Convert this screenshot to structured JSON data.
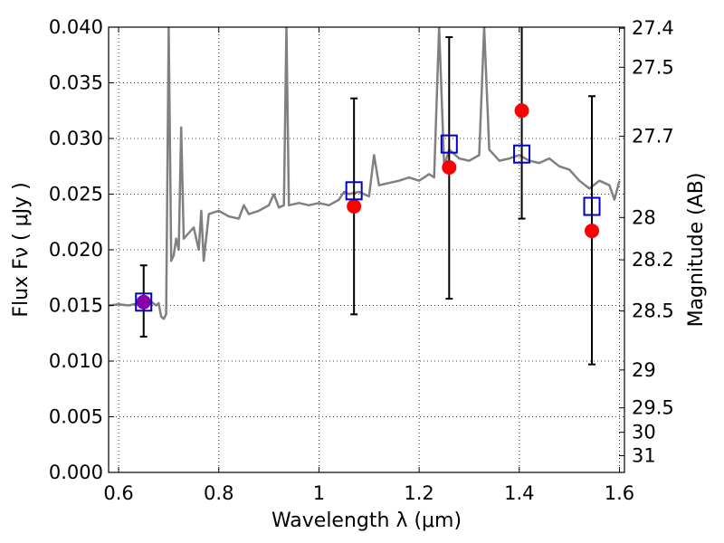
{
  "chart_data": {
    "type": "scatter",
    "xlabel": "Wavelength  λ (μm)",
    "ylabel": "Flux  Fν  ( μJy )",
    "y2label": "Magnitude (AB)",
    "xlim": [
      0.58,
      1.61
    ],
    "ylim": [
      0.0,
      0.04
    ],
    "xticks": [
      0.6,
      0.8,
      1.0,
      1.2,
      1.4,
      1.6
    ],
    "xtick_labels": [
      "0.6",
      "0.8",
      "1",
      "1.2",
      "1.4",
      "1.6"
    ],
    "yticks": [
      0.0,
      0.005,
      0.01,
      0.015,
      0.02,
      0.025,
      0.03,
      0.035,
      0.04
    ],
    "ytick_labels": [
      "0.000",
      "0.005",
      "0.010",
      "0.015",
      "0.020",
      "0.025",
      "0.030",
      "0.035",
      "0.040"
    ],
    "y2ticks": [
      {
        "label": "27.4",
        "flux": 0.0399
      },
      {
        "label": "27.5",
        "flux": 0.0364
      },
      {
        "label": "27.7",
        "flux": 0.0302
      },
      {
        "label": "28",
        "flux": 0.0229
      },
      {
        "label": "28.2",
        "flux": 0.0191
      },
      {
        "label": "28.5",
        "flux": 0.0145
      },
      {
        "label": "29",
        "flux": 0.0092
      },
      {
        "label": "29.5",
        "flux": 0.0058
      },
      {
        "label": "30",
        "flux": 0.0036
      },
      {
        "label": "31",
        "flux": 0.0015
      }
    ],
    "grid": true,
    "colors": {
      "model": "#808080",
      "observed": "#ff0000",
      "model_phot": "#0000cc",
      "errorbar": "#000000",
      "overlap": "#8800aa"
    },
    "series": [
      {
        "kind": "line",
        "points": [
          [
            0.58,
            0.015
          ],
          [
            0.6,
            0.0151
          ],
          [
            0.62,
            0.015
          ],
          [
            0.64,
            0.0152
          ],
          [
            0.66,
            0.0155
          ],
          [
            0.675,
            0.015
          ],
          [
            0.68,
            0.0152
          ],
          [
            0.685,
            0.014
          ],
          [
            0.69,
            0.0138
          ],
          [
            0.695,
            0.0142
          ],
          [
            0.7,
            0.04
          ],
          [
            0.705,
            0.019
          ],
          [
            0.71,
            0.0195
          ],
          [
            0.715,
            0.021
          ],
          [
            0.72,
            0.02
          ],
          [
            0.725,
            0.031
          ],
          [
            0.73,
            0.021
          ],
          [
            0.74,
            0.0215
          ],
          [
            0.75,
            0.022
          ],
          [
            0.76,
            0.02
          ],
          [
            0.765,
            0.0235
          ],
          [
            0.77,
            0.019
          ],
          [
            0.78,
            0.0232
          ],
          [
            0.8,
            0.0235
          ],
          [
            0.82,
            0.023
          ],
          [
            0.84,
            0.0228
          ],
          [
            0.85,
            0.024
          ],
          [
            0.86,
            0.0232
          ],
          [
            0.88,
            0.0235
          ],
          [
            0.9,
            0.024
          ],
          [
            0.91,
            0.025
          ],
          [
            0.92,
            0.0238
          ],
          [
            0.93,
            0.024
          ],
          [
            0.935,
            0.04
          ],
          [
            0.94,
            0.024
          ],
          [
            0.96,
            0.0242
          ],
          [
            0.98,
            0.024
          ],
          [
            1.0,
            0.0242
          ],
          [
            1.02,
            0.024
          ],
          [
            1.04,
            0.0245
          ],
          [
            1.05,
            0.0252
          ],
          [
            1.06,
            0.025
          ],
          [
            1.08,
            0.0252
          ],
          [
            1.1,
            0.0248
          ],
          [
            1.11,
            0.0285
          ],
          [
            1.12,
            0.0258
          ],
          [
            1.14,
            0.026
          ],
          [
            1.16,
            0.0262
          ],
          [
            1.18,
            0.0265
          ],
          [
            1.2,
            0.0262
          ],
          [
            1.22,
            0.0268
          ],
          [
            1.23,
            0.0265
          ],
          [
            1.24,
            0.04
          ],
          [
            1.25,
            0.0275
          ],
          [
            1.26,
            0.029
          ],
          [
            1.28,
            0.0282
          ],
          [
            1.3,
            0.028
          ],
          [
            1.32,
            0.0285
          ],
          [
            1.33,
            0.04
          ],
          [
            1.34,
            0.029
          ],
          [
            1.36,
            0.028
          ],
          [
            1.38,
            0.0282
          ],
          [
            1.4,
            0.0285
          ],
          [
            1.42,
            0.028
          ],
          [
            1.44,
            0.0278
          ],
          [
            1.46,
            0.0282
          ],
          [
            1.48,
            0.0275
          ],
          [
            1.5,
            0.0272
          ],
          [
            1.52,
            0.0262
          ],
          [
            1.54,
            0.0255
          ],
          [
            1.56,
            0.0262
          ],
          [
            1.58,
            0.0258
          ],
          [
            1.59,
            0.0245
          ],
          [
            1.6,
            0.0262
          ]
        ]
      },
      {
        "kind": "points",
        "points": [
          {
            "x": 0.65,
            "y": 0.0153,
            "yerr_low": 0.0122,
            "yerr_high": 0.0186,
            "model": 0.0153
          },
          {
            "x": 1.07,
            "y": 0.0239,
            "yerr_low": 0.0142,
            "yerr_high": 0.0336,
            "model": 0.0253
          },
          {
            "x": 1.26,
            "y": 0.0274,
            "yerr_low": 0.0156,
            "yerr_high": 0.0391,
            "model": 0.0295
          },
          {
            "x": 1.405,
            "y": 0.0325,
            "yerr_low": 0.0228,
            "yerr_high": 0.04,
            "model": 0.0286
          },
          {
            "x": 1.545,
            "y": 0.0217,
            "yerr_low": 0.0097,
            "yerr_high": 0.0338,
            "model": 0.0239
          }
        ]
      }
    ]
  }
}
